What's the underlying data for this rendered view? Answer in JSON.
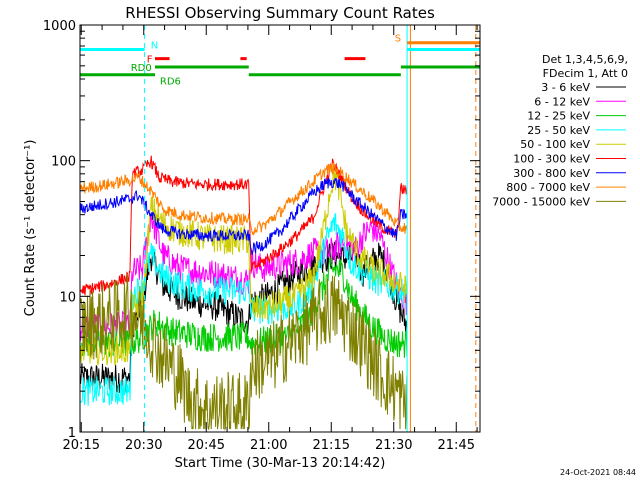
{
  "chart_data": {
    "type": "line",
    "title": "RHESSI Observing Summary Count Rates",
    "xlabel": "Start Time (30-Mar-13 20:14:42)",
    "ylabel": "Count Rate (s⁻¹ detector⁻¹)",
    "x_unit": "minutes after 20:14:42",
    "xlim": [
      0,
      96
    ],
    "ylim": [
      1,
      1000
    ],
    "y_scale": "log",
    "x_ticks": [
      {
        "label": "20:15",
        "x": 0.3
      },
      {
        "label": "20:30",
        "x": 15.3
      },
      {
        "label": "20:45",
        "x": 30.3
      },
      {
        "label": "21:00",
        "x": 45.3
      },
      {
        "label": "21:15",
        "x": 60.3
      },
      {
        "label": "21:30",
        "x": 75.3
      },
      {
        "label": "21:45",
        "x": 90.3
      }
    ],
    "y_ticks": [
      {
        "label": "1",
        "y": 1
      },
      {
        "label": "10",
        "y": 10
      },
      {
        "label": "100",
        "y": 100
      },
      {
        "label": "1000",
        "y": 1000
      }
    ],
    "legend": {
      "position": "right",
      "header": [
        "Det 1,3,4,5,6,9,",
        "FDecim 1, Att 0"
      ]
    },
    "series": [
      {
        "name": "3 - 6 keV",
        "color": "#000000",
        "x": [
          0,
          12,
          12.5,
          15,
          17,
          20,
          24,
          28,
          32,
          38,
          40.5,
          41,
          45,
          50,
          54,
          58,
          61,
          63,
          66,
          68,
          70,
          72,
          74,
          76,
          78.5
        ],
        "y": [
          2.5,
          2.5,
          6,
          9,
          20,
          12,
          10,
          9,
          8.5,
          7,
          6.5,
          9,
          10,
          13,
          16,
          19,
          20,
          19,
          20,
          15,
          18,
          20,
          15,
          9,
          6
        ]
      },
      {
        "name": "6 - 12 keV",
        "color": "#ff00ff",
        "x": [
          0,
          12,
          12.5,
          15,
          17,
          20,
          24,
          30,
          36,
          40.5,
          41,
          44,
          48,
          52,
          56,
          60,
          63,
          66,
          68,
          70,
          72,
          74,
          76,
          78.5
        ],
        "y": [
          6,
          6,
          15,
          16,
          40,
          20,
          16,
          15,
          14,
          13,
          18,
          16,
          17,
          18,
          21,
          21,
          25,
          22,
          28,
          32,
          28,
          18,
          12,
          9
        ]
      },
      {
        "name": "12 - 25 keV",
        "color": "#00cc00",
        "x": [
          0,
          12,
          15,
          18,
          22,
          30,
          36,
          40.5,
          41,
          46,
          50,
          55,
          58,
          60,
          61,
          63,
          65,
          67,
          70,
          73,
          76,
          78.5
        ],
        "y": [
          4.5,
          4.5,
          5,
          6.5,
          5.5,
          5,
          5,
          5,
          4.5,
          4.8,
          5,
          7,
          11,
          15,
          16,
          15,
          10,
          8,
          6,
          5,
          4.5,
          4.5
        ]
      },
      {
        "name": "25 - 50 keV",
        "color": "#00ffff",
        "x": [
          0,
          12,
          12.5,
          15,
          17,
          20,
          24,
          30,
          36,
          40.5,
          41,
          46,
          52,
          56,
          59,
          61,
          63,
          65,
          68,
          71,
          74,
          77,
          78.5
        ],
        "y": [
          2,
          2,
          10,
          12,
          20,
          14,
          12,
          11,
          11,
          11,
          8,
          8,
          8.5,
          12,
          25,
          35,
          28,
          18,
          15,
          13,
          12,
          11,
          10
        ]
      },
      {
        "name": "50 - 100 keV",
        "color": "#cccc00",
        "x": [
          0,
          12,
          12.5,
          15,
          17,
          20,
          24,
          30,
          36,
          40.5,
          41,
          46,
          52,
          56,
          58,
          60,
          61,
          62,
          64,
          67,
          70,
          74,
          78.5
        ],
        "y": [
          4,
          4,
          8,
          9,
          45,
          34,
          30,
          27,
          26,
          26,
          8,
          8.5,
          10,
          14,
          26,
          60,
          80,
          65,
          30,
          20,
          16,
          14,
          11
        ]
      },
      {
        "name": "100 - 300 keV",
        "color": "#ff0000",
        "x": [
          0,
          6,
          12,
          12.5,
          15,
          17,
          19,
          22,
          28,
          36,
          40.5,
          41,
          44,
          48,
          52,
          56,
          59,
          60.5,
          62,
          65,
          68,
          72,
          76,
          77,
          78.5
        ],
        "y": [
          11,
          12,
          14,
          80,
          85,
          100,
          75,
          70,
          67,
          67,
          67,
          16,
          18,
          22,
          28,
          38,
          70,
          95,
          82,
          55,
          42,
          33,
          28,
          62,
          60
        ]
      },
      {
        "name": "300 - 800 keV",
        "color": "#0000ff",
        "x": [
          0,
          6,
          12,
          14,
          17,
          20,
          24,
          30,
          36,
          40.5,
          41,
          44,
          48,
          52,
          56,
          59,
          61,
          63,
          66,
          70,
          74,
          76,
          77,
          78.5
        ],
        "y": [
          44,
          48,
          52,
          56,
          40,
          31,
          29,
          28,
          28,
          28,
          22,
          24,
          30,
          42,
          58,
          68,
          70,
          66,
          52,
          40,
          31,
          28,
          40,
          40
        ]
      },
      {
        "name": "800 - 7000 keV",
        "color": "#ff8000",
        "x": [
          0,
          6,
          12,
          14,
          17,
          20,
          24,
          30,
          36,
          40.5,
          41,
          44,
          48,
          52,
          56,
          59,
          61,
          63,
          66,
          70,
          74,
          76,
          77,
          78.5
        ],
        "y": [
          62,
          66,
          72,
          76,
          60,
          44,
          40,
          38,
          37,
          37,
          31,
          33,
          42,
          55,
          70,
          85,
          88,
          80,
          66,
          52,
          40,
          34,
          32,
          32
        ]
      },
      {
        "name": "7000 - 15000 keV",
        "color": "#808000",
        "x": [
          0,
          4,
          8,
          12,
          15,
          17,
          20,
          24,
          26,
          30,
          36,
          40.5,
          41,
          46,
          50,
          55,
          58,
          60,
          61,
          62,
          64,
          67,
          70,
          73,
          76,
          78.5
        ],
        "y": [
          6,
          6.5,
          7,
          8,
          6.5,
          5,
          3.5,
          2.5,
          1.8,
          1.5,
          1.5,
          1.5,
          3,
          3.5,
          4.5,
          6,
          7.5,
          8,
          8.2,
          8,
          6.5,
          5,
          3.5,
          2.5,
          2,
          1.5
        ]
      }
    ],
    "annotations": {
      "state_bars": [
        {
          "label": "N",
          "color": "#00ffff",
          "y": 660,
          "segments": [
            [
              0,
              15.5
            ],
            [
              78.5,
              96
            ]
          ]
        },
        {
          "label": "S",
          "color": "#ff8000",
          "y": 740,
          "segments": [
            [
              78.5,
              96
            ]
          ]
        },
        {
          "label": "F",
          "color": "#ff0000",
          "y": 565,
          "segments": [
            [
              18,
              21.5
            ],
            [
              38.5,
              40
            ],
            [
              63.5,
              68.5
            ]
          ]
        },
        {
          "label": "RD0",
          "color": "#00aa00",
          "y": 490,
          "segments": [
            [
              18,
              40.5
            ],
            [
              77,
              96
            ]
          ]
        },
        {
          "label": "RD6",
          "color": "#00aa00",
          "y": 430,
          "segments": [
            [
              0,
              18
            ],
            [
              40.5,
              77
            ]
          ]
        }
      ],
      "vertical_lines": [
        {
          "x": 15.5,
          "color": "#00ffff",
          "style": "dashed"
        },
        {
          "x": 78.5,
          "color": "#00ffff",
          "style": "solid"
        },
        {
          "x": 79.3,
          "color": "#ff8000",
          "style": "solid"
        },
        {
          "x": 95,
          "color": "#ff8000",
          "style": "dashed"
        }
      ],
      "timestamp": "24-Oct-2021 08:44"
    }
  }
}
